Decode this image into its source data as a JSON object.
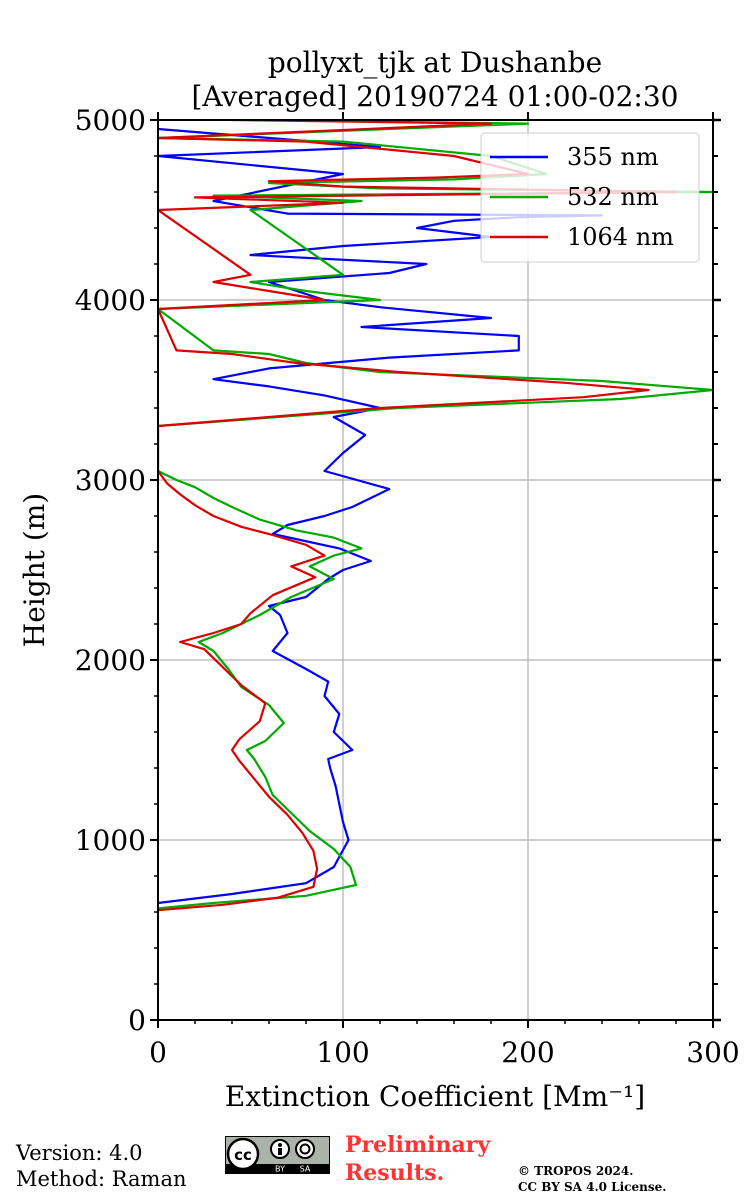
{
  "chart_data": {
    "type": "line",
    "title_line1": "pollyxt_tjk at Dushanbe",
    "title_line2": "[Averaged] 20190724 01:00-02:30",
    "xlabel": "Extinction Coefficient [Mm⁻¹]",
    "ylabel": "Height (m)",
    "xlim": [
      0,
      300
    ],
    "ylim": [
      0,
      5000
    ],
    "xticks": [
      "0",
      "100",
      "200",
      "300"
    ],
    "yticks": [
      "0",
      "1000",
      "2000",
      "3000",
      "4000",
      "5000"
    ],
    "legend_position": "top-right",
    "grid": true,
    "series": [
      {
        "name": "355 nm",
        "color": "#0000ff",
        "x": [
          0,
          40,
          80,
          95,
          103,
          100,
          98,
          96,
          93,
          92,
          105,
          95,
          98,
          90,
          92,
          80,
          62,
          70,
          66,
          60,
          80,
          92,
          100,
          115,
          98,
          62,
          70,
          90,
          105,
          125,
          90,
          100,
          112,
          95,
          120,
          90,
          60,
          30,
          60,
          125,
          195,
          195,
          110,
          180,
          120,
          90,
          60,
          125,
          145,
          50,
          100,
          180,
          140,
          160,
          195,
          240,
          70,
          30,
          100,
          0,
          120,
          0
        ],
        "y": [
          650,
          700,
          760,
          850,
          1000,
          1100,
          1200,
          1300,
          1400,
          1450,
          1500,
          1600,
          1700,
          1800,
          1880,
          1950,
          2050,
          2150,
          2250,
          2300,
          2350,
          2450,
          2500,
          2550,
          2620,
          2700,
          2750,
          2800,
          2850,
          2950,
          3050,
          3150,
          3250,
          3350,
          3400,
          3470,
          3520,
          3560,
          3620,
          3680,
          3720,
          3800,
          3850,
          3900,
          3960,
          4000,
          4100,
          4150,
          4200,
          4250,
          4300,
          4350,
          4400,
          4440,
          4460,
          4470,
          4480,
          4550,
          4700,
          4800,
          4850,
          4950
        ]
      },
      {
        "name": "532 nm",
        "color": "#00aa00",
        "x": [
          0,
          30,
          80,
          107,
          104,
          95,
          82,
          72,
          62,
          58,
          52,
          48,
          58,
          68,
          60,
          45,
          38,
          30,
          22,
          35,
          45,
          55,
          72,
          95,
          82,
          95,
          110,
          95,
          75,
          55,
          40,
          30,
          20,
          10,
          0,
          0,
          130,
          250,
          300,
          240,
          120,
          80,
          60,
          30,
          0,
          120,
          80,
          50,
          100,
          50,
          110,
          30,
          300,
          120,
          60,
          160,
          210,
          180,
          100,
          0,
          200,
          50
        ],
        "y": [
          620,
          650,
          690,
          750,
          850,
          950,
          1050,
          1150,
          1250,
          1350,
          1450,
          1500,
          1550,
          1650,
          1750,
          1850,
          1950,
          2050,
          2100,
          2150,
          2200,
          2250,
          2350,
          2450,
          2520,
          2580,
          2620,
          2680,
          2720,
          2780,
          2850,
          2900,
          2960,
          3000,
          3050,
          3300,
          3400,
          3450,
          3500,
          3550,
          3600,
          3650,
          3700,
          3720,
          3950,
          4000,
          4050,
          4100,
          4140,
          4500,
          4550,
          4580,
          4600,
          4620,
          4650,
          4670,
          4700,
          4800,
          4880,
          4900,
          4980,
          5000
        ]
      },
      {
        "name": "1064 nm",
        "color": "#dd0000",
        "x": [
          0,
          35,
          65,
          84,
          86,
          84,
          78,
          70,
          60,
          52,
          44,
          40,
          44,
          55,
          58,
          45,
          35,
          25,
          12,
          30,
          45,
          50,
          62,
          85,
          72,
          90,
          80,
          60,
          45,
          30,
          20,
          12,
          5,
          0,
          0,
          120,
          230,
          265,
          220,
          130,
          75,
          40,
          10,
          0,
          90,
          60,
          30,
          50,
          0,
          100,
          20,
          280,
          100,
          60,
          150,
          200,
          160,
          80,
          0,
          180,
          40
        ],
        "y": [
          610,
          640,
          680,
          740,
          840,
          940,
          1040,
          1140,
          1240,
          1340,
          1440,
          1500,
          1560,
          1660,
          1760,
          1860,
          1960,
          2060,
          2100,
          2150,
          2200,
          2260,
          2360,
          2460,
          2520,
          2580,
          2640,
          2700,
          2740,
          2800,
          2860,
          2920,
          2980,
          3050,
          3300,
          3400,
          3460,
          3500,
          3540,
          3600,
          3650,
          3700,
          3720,
          3950,
          4000,
          4050,
          4100,
          4140,
          4500,
          4540,
          4570,
          4600,
          4630,
          4660,
          4680,
          4700,
          4800,
          4880,
          4900,
          4980,
          5000
        ]
      }
    ]
  },
  "footer": {
    "version": "Version: 4.0",
    "method": "Method: Raman",
    "preliminary_1": "Preliminary",
    "preliminary_2": "Results.",
    "copyright": "© TROPOS 2024.",
    "license": "CC BY SA 4.0 License.",
    "cc_label": "cc",
    "cc_by": "BY",
    "cc_sa": "SA"
  }
}
